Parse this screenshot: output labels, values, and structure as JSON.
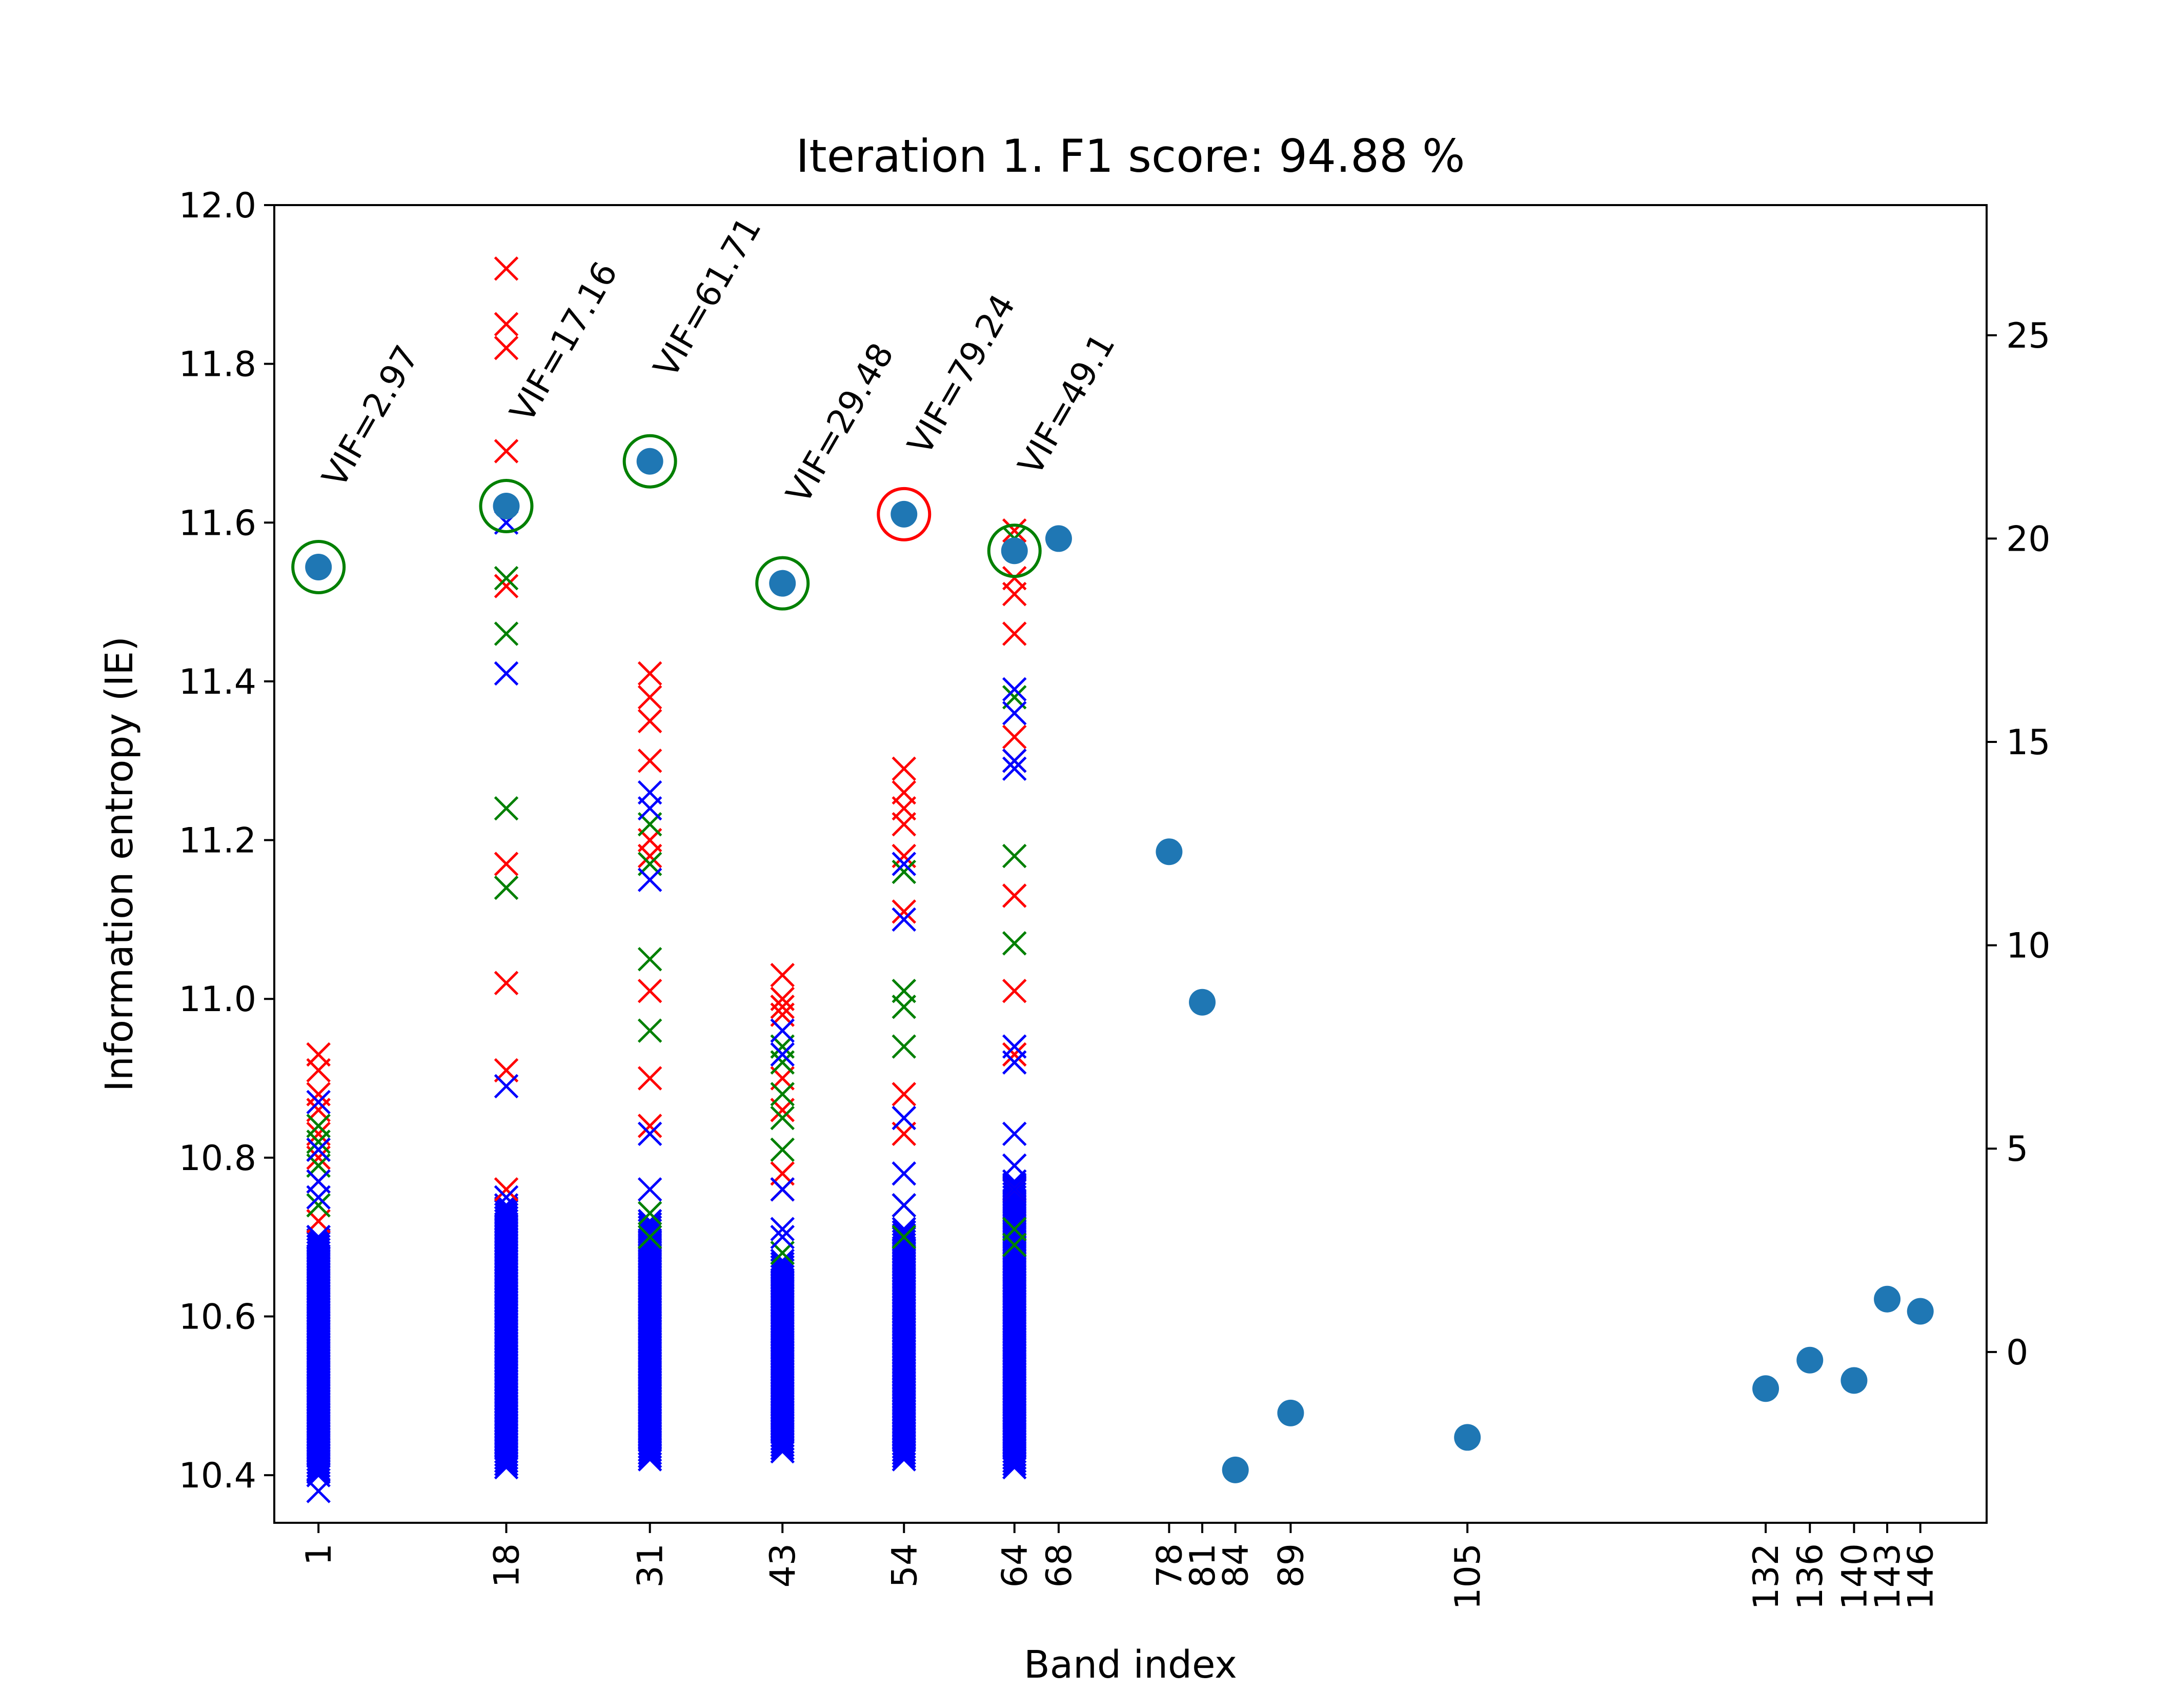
{
  "chart_data": {
    "type": "scatter",
    "title": "Iteration 1. F1 score: 94.88 %",
    "xlabel": "Band index",
    "ylabel": "Information entropy (IE)",
    "ylim": [
      10.34,
      12.0
    ],
    "y2lim": [
      -4.2,
      28.2
    ],
    "xlim": [
      -3,
      152
    ],
    "x_ticks": [
      1,
      18,
      31,
      43,
      54,
      64,
      68,
      78,
      81,
      84,
      89,
      105,
      132,
      136,
      140,
      143,
      146
    ],
    "y_ticks": [
      10.4,
      10.6,
      10.8,
      11.0,
      11.2,
      11.4,
      11.6,
      11.8,
      12.0
    ],
    "y2_ticks": [
      0,
      5,
      10,
      15,
      20,
      25
    ],
    "colors": {
      "points": "#1f77b4",
      "red": "#ff0000",
      "green": "#008000",
      "blue": "#0000ff"
    },
    "points_right_axis": {
      "x": [
        1,
        18,
        31,
        43,
        54,
        64,
        68,
        78,
        81,
        84,
        89,
        105,
        132,
        136,
        140,
        143,
        146
      ],
      "y": [
        19.3,
        20.8,
        21.9,
        18.9,
        20.6,
        19.7,
        20.0,
        12.3,
        8.6,
        -2.9,
        -1.5,
        -2.1,
        -0.9,
        -0.2,
        -0.7,
        1.3,
        1.0
      ]
    },
    "circled_bands": [
      {
        "x": 1,
        "color": "green"
      },
      {
        "x": 18,
        "color": "green"
      },
      {
        "x": 31,
        "color": "green"
      },
      {
        "x": 43,
        "color": "green"
      },
      {
        "x": 54,
        "color": "red"
      },
      {
        "x": 64,
        "color": "green"
      }
    ],
    "annotations": [
      {
        "x": 1,
        "y2": 21.2,
        "text": "VIF=2.97"
      },
      {
        "x": 18,
        "y2": 22.8,
        "text": "VIF=17.16"
      },
      {
        "x": 31,
        "y2": 23.9,
        "text": "VIF=61.71"
      },
      {
        "x": 43,
        "y2": 20.8,
        "text": "VIF=29.48"
      },
      {
        "x": 54,
        "y2": 22.0,
        "text": "VIF=79.24"
      },
      {
        "x": 64,
        "y2": 21.5,
        "text": "VIF=49.1"
      }
    ],
    "cross_markers": [
      {
        "x": 1,
        "red": [
          10.93,
          10.91,
          10.88,
          10.86,
          10.83,
          10.8,
          10.77,
          10.72
        ],
        "green": [
          10.84,
          10.82,
          10.81,
          10.79,
          10.74
        ],
        "blue": [
          10.87,
          10.81,
          10.77,
          10.75,
          10.7,
          10.38
        ],
        "blue_range": [
          10.4,
          10.7
        ]
      },
      {
        "x": 18,
        "red": [
          11.92,
          11.85,
          11.82,
          11.69,
          11.52,
          11.17,
          11.02,
          10.91,
          10.76
        ],
        "green": [
          11.53,
          11.46,
          11.24,
          11.14
        ],
        "blue": [
          11.6,
          11.41,
          10.89,
          10.75
        ],
        "blue_range": [
          10.41,
          10.74
        ]
      },
      {
        "x": 31,
        "red": [
          11.41,
          11.38,
          11.35,
          11.3,
          11.2,
          11.18,
          11.01,
          10.9,
          10.84
        ],
        "green": [
          11.22,
          11.17,
          11.05,
          10.96,
          10.73,
          10.7
        ],
        "blue": [
          11.26,
          11.24,
          11.15,
          10.83,
          10.76
        ],
        "blue_range": [
          10.42,
          10.72
        ]
      },
      {
        "x": 43,
        "red": [
          11.03,
          11.0,
          10.99,
          10.98,
          10.9,
          10.86,
          10.78,
          10.76
        ],
        "green": [
          10.94,
          10.92,
          10.88,
          10.85,
          10.81,
          10.68
        ],
        "blue": [
          10.96,
          10.93,
          10.76,
          10.71,
          10.7
        ],
        "blue_range": [
          10.43,
          10.67
        ]
      },
      {
        "x": 54,
        "red": [
          11.29,
          11.26,
          11.24,
          11.22,
          11.18,
          11.11,
          10.88,
          10.83
        ],
        "green": [
          11.16,
          11.01,
          10.99,
          10.94,
          10.74,
          10.7
        ],
        "blue": [
          11.17,
          11.1,
          10.85,
          10.78,
          10.74
        ],
        "blue_range": [
          10.42,
          10.71
        ]
      },
      {
        "x": 64,
        "red": [
          11.59,
          11.53,
          11.51,
          11.46,
          11.33,
          11.3,
          11.13,
          11.01,
          10.93,
          10.76
        ],
        "green": [
          11.58,
          11.38,
          11.18,
          11.07,
          10.71,
          10.69
        ],
        "blue": [
          11.39,
          11.36,
          11.3,
          11.29,
          10.94,
          10.92,
          10.83,
          10.79,
          10.76
        ],
        "blue_range": [
          10.41,
          10.77
        ]
      }
    ]
  }
}
